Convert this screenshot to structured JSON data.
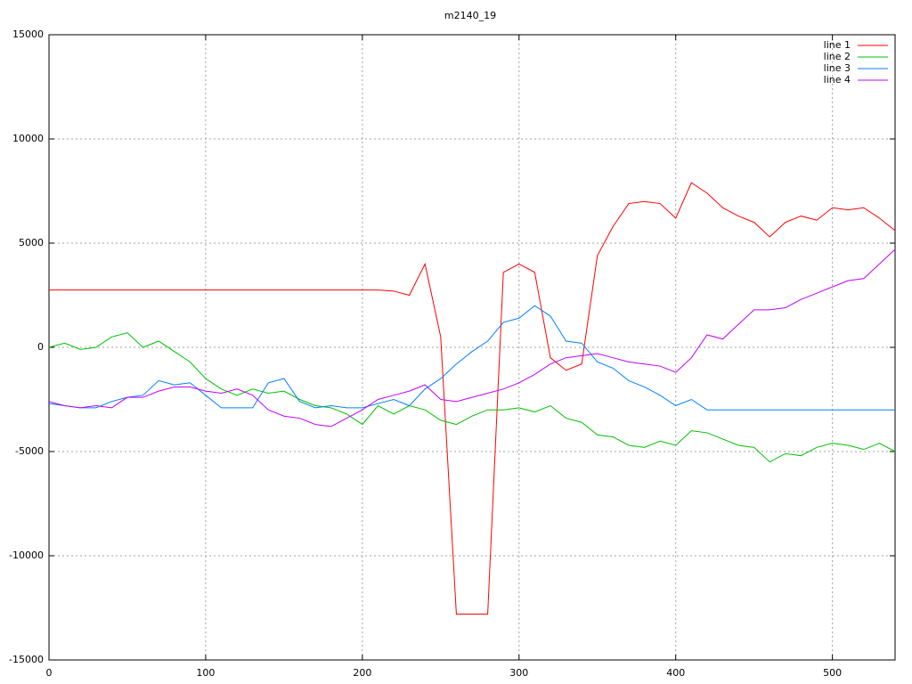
{
  "chart_data": {
    "type": "line",
    "title": "m2140_19",
    "x": [
      0,
      10,
      20,
      30,
      40,
      50,
      60,
      70,
      80,
      90,
      100,
      110,
      120,
      130,
      140,
      150,
      160,
      170,
      180,
      190,
      200,
      210,
      220,
      230,
      240,
      250,
      260,
      270,
      280,
      290,
      300,
      310,
      320,
      330,
      340,
      350,
      360,
      370,
      380,
      390,
      400,
      410,
      420,
      430,
      440,
      450,
      460,
      470,
      480,
      490,
      500,
      510,
      520,
      530,
      540
    ],
    "series": [
      {
        "name": "line 1",
        "color": "#ff0000",
        "values": [
          2750,
          2750,
          2750,
          2750,
          2750,
          2750,
          2750,
          2750,
          2750,
          2750,
          2750,
          2750,
          2750,
          2750,
          2750,
          2750,
          2750,
          2750,
          2750,
          2750,
          2750,
          2750,
          2700,
          2500,
          4000,
          500,
          -12800,
          -12800,
          -12800,
          3600,
          4000,
          3600,
          -500,
          -1100,
          -800,
          4400,
          5800,
          6900,
          7000,
          6900,
          6200,
          7900,
          7400,
          6700,
          6300,
          6000,
          5300,
          6000,
          6300,
          6100,
          6700,
          6600,
          6700,
          6200,
          5600
        ]
      },
      {
        "name": "line 2",
        "color": "#00c000",
        "values": [
          0,
          200,
          -100,
          0,
          500,
          700,
          0,
          300,
          -200,
          -700,
          -1500,
          -2000,
          -2300,
          -2000,
          -2200,
          -2100,
          -2500,
          -2800,
          -2900,
          -3200,
          -3700,
          -2800,
          -3200,
          -2800,
          -3000,
          -3500,
          -3700,
          -3300,
          -3000,
          -3000,
          -2900,
          -3100,
          -2800,
          -3400,
          -3600,
          -4200,
          -4300,
          -4700,
          -4800,
          -4500,
          -4700,
          -4000,
          -4100,
          -4400,
          -4700,
          -4800,
          -5500,
          -5100,
          -5200,
          -4800,
          -4600,
          -4700,
          -4900,
          -4600,
          -5000
        ]
      },
      {
        "name": "line 3",
        "color": "#0080ff",
        "values": [
          -2700,
          -2800,
          -2900,
          -2900,
          -2600,
          -2400,
          -2300,
          -1600,
          -1800,
          -1700,
          -2300,
          -2900,
          -2900,
          -2900,
          -1700,
          -1500,
          -2600,
          -2900,
          -2800,
          -2900,
          -2900,
          -2700,
          -2500,
          -2800,
          -2000,
          -1500,
          -800,
          -200,
          300,
          1200,
          1400,
          2000,
          1500,
          300,
          200,
          -700,
          -1000,
          -1600,
          -1900,
          -2300,
          -2800,
          -2500,
          -3000,
          -3000,
          -3000,
          -3000,
          -3000,
          -3000,
          -3000,
          -3000,
          -3000,
          -3000,
          -3000,
          -3000,
          -3000
        ]
      },
      {
        "name": "line 4",
        "color": "#c000ff",
        "values": [
          -2600,
          -2800,
          -2900,
          -2800,
          -2900,
          -2400,
          -2400,
          -2100,
          -1900,
          -1900,
          -2100,
          -2200,
          -2000,
          -2300,
          -3000,
          -3300,
          -3400,
          -3700,
          -3800,
          -3400,
          -3000,
          -2500,
          -2300,
          -2100,
          -1800,
          -2500,
          -2600,
          -2400,
          -2200,
          -2000,
          -1700,
          -1300,
          -800,
          -500,
          -400,
          -300,
          -500,
          -700,
          -800,
          -900,
          -1200,
          -500,
          600,
          400,
          1100,
          1800,
          1800,
          1900,
          2300,
          2600,
          2900,
          3200,
          3300,
          4000,
          4700
        ]
      }
    ],
    "xlim": [
      0,
      540
    ],
    "xticks": [
      0,
      100,
      200,
      300,
      400,
      500
    ],
    "ylim": [
      -15000,
      15000
    ],
    "yticks": [
      -15000,
      -10000,
      -5000,
      0,
      5000,
      10000,
      15000
    ],
    "grid": true,
    "legend": "top-right"
  }
}
